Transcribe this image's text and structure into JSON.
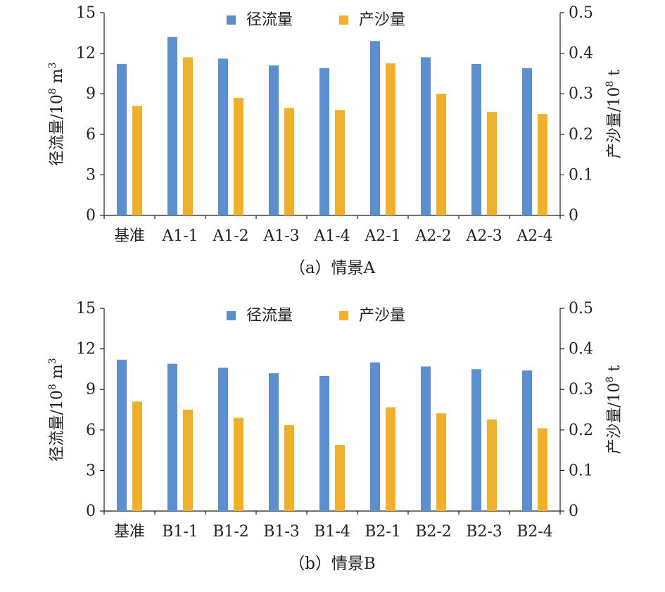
{
  "chart_data": [
    {
      "type": "bar",
      "caption": "（a）情景A",
      "categories": [
        "基准",
        "A1-1",
        "A1-2",
        "A1-3",
        "A1-4",
        "A2-1",
        "A2-2",
        "A2-3",
        "A2-4"
      ],
      "series": [
        {
          "name": "径流量",
          "axis": "left",
          "color": "#5B8FCF",
          "values": [
            11.2,
            13.2,
            11.6,
            11.1,
            10.9,
            12.9,
            11.7,
            11.2,
            10.9
          ]
        },
        {
          "name": "产沙量",
          "axis": "right",
          "color": "#F0B02A",
          "values": [
            0.27,
            0.39,
            0.29,
            0.265,
            0.26,
            0.375,
            0.3,
            0.255,
            0.25
          ]
        }
      ],
      "ylabel_left": {
        "main": "径流量/10",
        "sup1": "8",
        "mid": " m",
        "sup2": "3"
      },
      "ylabel_right": {
        "main": "产沙量/10",
        "sup1": "8",
        "mid": " t",
        "sup2": ""
      },
      "ylim_left": [
        0,
        15
      ],
      "yticks_left": [
        "0",
        "3",
        "6",
        "9",
        "12",
        "15"
      ],
      "ylim_right": [
        0,
        0.5
      ],
      "yticks_right": [
        "0",
        "0.1",
        "0.2",
        "0.3",
        "0.4",
        "0.5"
      ],
      "grid": false,
      "legend": "top-center"
    },
    {
      "type": "bar",
      "caption": "（b）情景B",
      "categories": [
        "基准",
        "B1-1",
        "B1-2",
        "B1-3",
        "B1-4",
        "B2-1",
        "B2-2",
        "B2-3",
        "B2-4"
      ],
      "series": [
        {
          "name": "径流量",
          "axis": "left",
          "color": "#5B8FCF",
          "values": [
            11.2,
            10.9,
            10.6,
            10.2,
            10.0,
            11.0,
            10.7,
            10.5,
            10.4
          ]
        },
        {
          "name": "产沙量",
          "axis": "right",
          "color": "#F0B02A",
          "values": [
            0.27,
            0.25,
            0.23,
            0.212,
            0.163,
            0.256,
            0.241,
            0.226,
            0.204
          ]
        }
      ],
      "ylabel_left": {
        "main": "径流量/10",
        "sup1": "8",
        "mid": " m",
        "sup2": "3"
      },
      "ylabel_right": {
        "main": "产沙量/10",
        "sup1": "8",
        "mid": " t",
        "sup2": ""
      },
      "ylim_left": [
        0,
        15
      ],
      "yticks_left": [
        "0",
        "3",
        "6",
        "9",
        "12",
        "15"
      ],
      "ylim_right": [
        0,
        0.5
      ],
      "yticks_right": [
        "0",
        "0.1",
        "0.2",
        "0.3",
        "0.4",
        "0.5"
      ],
      "grid": false,
      "legend": "top-center"
    }
  ]
}
